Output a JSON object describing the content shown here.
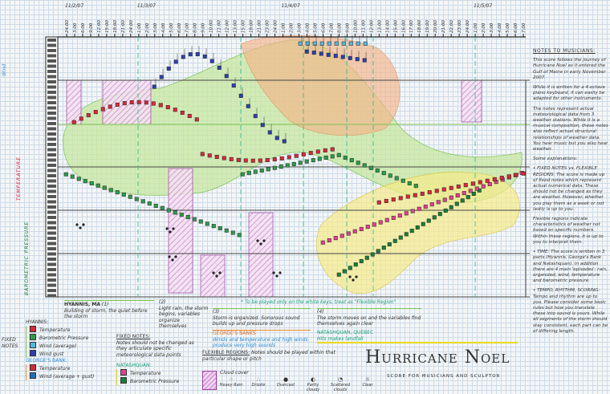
{
  "title": "Hurricane Noel",
  "subtitle": "SCORE FOR MUSICIANS AND SCULPTOR",
  "dates": [
    "11/2/07",
    "11/3/07",
    "11/4/07",
    "11/5/07"
  ],
  "time_labels": {
    "day1": [
      "24:00",
      "3:00",
      "6:00",
      "9:00",
      "12:00",
      "15:00",
      "18:00",
      "21:00",
      "24:00"
    ],
    "day2": [
      "1:00",
      "2:00",
      "3:00",
      "4:00",
      "5:00",
      "6:00",
      "7:00",
      "8:00",
      "9:00",
      "10:00",
      "11:00",
      "12:00",
      "13:00",
      "15:00",
      "18:00",
      "21:00",
      "23:00",
      "24:00"
    ],
    "day3": [
      "1:00",
      "2:00",
      "3:00",
      "4:00",
      "5:00",
      "6:00",
      "7:00",
      "8:00",
      "9:00",
      "10:00",
      "11:00",
      "12:00",
      "13:00",
      "14:00",
      "15:00",
      "16:00",
      "17:00",
      "18:00",
      "19:00",
      "20:00",
      "21:00",
      "22:00",
      "23:00",
      "24:00"
    ],
    "day4": [
      "1:00",
      "2:00",
      "3:00",
      "4:00",
      "5:00",
      "6:00",
      "7:00"
    ]
  },
  "axis_labels": {
    "wind": "Wind",
    "temperature": "TEMPERATURE",
    "pressure": "BAROMETRIC PRESSURE"
  },
  "sections": [
    {
      "num": "1",
      "place": "HYANNIS, MA",
      "text": "Building of storm, the quiet before the storm"
    },
    {
      "num": "2",
      "text": "Light rain, the storm begins, variables organize themselves"
    },
    {
      "num": "3",
      "text": "Storm is organized. Sonorous sound builds up and pressure drops"
    },
    {
      "num": "4",
      "text": "The storm moves on and the variables find themselves again clear"
    }
  ],
  "region_notes": {
    "georges": "GEORGE'S BANKS",
    "georges_text": "Winds and temperature and high winds produce very high sounds",
    "natashquan": "NATASHQUAN, QUEBEC",
    "natashquan_text": "Hits makes landfall",
    "play_note": "* To be played only on the white keys, treat as \"Flexible Region\""
  },
  "legend": {
    "fixed_notes": "FIXED NOTES",
    "hyannis": {
      "title": "HYANNIS:",
      "items": [
        {
          "label": "Temperature",
          "color": "#d8283a"
        },
        {
          "label": "Barometric Pressure",
          "color": "#2e9a4a"
        },
        {
          "label": "Wind (average)",
          "color": "#52b8e0"
        },
        {
          "label": "Wind gust",
          "color": "#2c3fae"
        }
      ]
    },
    "georges": {
      "title": "GEORGE'S BANK:",
      "items": [
        {
          "label": "Temperature",
          "color": "#d8283a"
        },
        {
          "label": "Wind (average + gust)",
          "color": "#1f6fc0"
        }
      ]
    },
    "natashquan": {
      "title": "NATASHQUAN:",
      "items": [
        {
          "label": "Temperature",
          "color": "#e0418e"
        },
        {
          "label": "Barometric Pressure",
          "color": "#17803a"
        }
      ]
    },
    "fixed_notes_desc_title": "FIXED NOTES:",
    "fixed_notes_desc": "Notes should not be changed as they articulate specific meteorological data points",
    "flexible_title": "FLEXIBLE REGIONS:",
    "flexible_desc": "Notes should be played within that particular shape or pitch",
    "cloud_cover": "Cloud cover",
    "symbols": [
      "Heavy Rain",
      "Drizzle",
      "Overcast",
      "Partly cloudy",
      "Scattered clouds",
      "Clear"
    ]
  },
  "notes_to_musicians": {
    "heading": "NOTES TO MUSICIANS:",
    "paragraphs": [
      "This score follows the journey of Hurricane Noel as it entered the Gulf of Maine in early November 2007.",
      "While it is written for a 4-octave piano keyboard, it can easily be adapted for other instruments.",
      "The notes represent actual meteorological data from 3 weather stations. While it is a musical composition, these notes also reflect actual structural relationships of weather data. You hear music but you also hear weather.",
      "Some explanations:",
      "• FIXED NOTES vs. FLEXIBLE REGIONS: The score is made up of fixed notes which represent actual numerical data. These should not be changed as they are weather. However, whether you play them as a week or not lastly is up to you.",
      "Flexible regions indicate characteristics of weather not based on specific numbers. Within these regions, it is up to you to interpret them.",
      "• TIME: The score is written in 3 parts (Hyannis, George's Bank and Natashquan). In addition there are 4 main 'episodes': rain, organized, wind, temperature and barometric pressure.",
      "• TEMPO, RHYTHM, SCORING: Tempo and rhythm are up to you. Please consider some basic rules but how you translate these into sound is yours. While all segments of the storm should stay consistent, each part can be of differing length."
    ]
  },
  "colors": {
    "wind_region": "#f4b58a",
    "pressure_region": "#c7e8a0",
    "natashquan_region": "#f6ec8a",
    "cloud_cover": "#d7a0d8",
    "guide_line": "#28b890"
  }
}
